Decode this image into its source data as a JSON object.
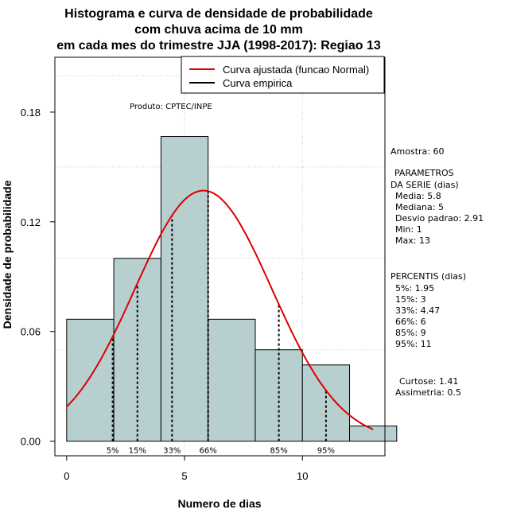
{
  "chart_data": {
    "type": "bar",
    "title_lines": [
      "Histograma e curva de densidade de probabilidade",
      "com chuva acima de 10 mm",
      "em cada mes do trimestre JJA (1998-2017): Regiao 13"
    ],
    "xlabel": "Numero de dias",
    "ylabel": "Densidade de probabilidade",
    "xlim": [
      -0.5,
      13.5
    ],
    "ylim": [
      -0.008,
      0.21
    ],
    "x_ticks": [
      0,
      5,
      10
    ],
    "y_ticks": [
      0.0,
      0.06,
      0.12,
      0.18
    ],
    "y_tick_labels": [
      "0.00",
      "0.06",
      "0.12",
      "0.18"
    ],
    "bins": [
      {
        "x0": 0,
        "x1": 2,
        "density": 0.0667
      },
      {
        "x0": 2,
        "x1": 4,
        "density": 0.1
      },
      {
        "x0": 4,
        "x1": 6,
        "density": 0.1667
      },
      {
        "x0": 6,
        "x1": 8,
        "density": 0.0667
      },
      {
        "x0": 8,
        "x1": 10,
        "density": 0.05
      },
      {
        "x0": 10,
        "x1": 12,
        "density": 0.0417
      },
      {
        "x0": 12,
        "x1": 14,
        "density": 0.0083
      }
    ],
    "normal_curve": {
      "mean": 5.8,
      "sd": 2.91,
      "x_from": 0,
      "x_to": 13,
      "color": "#dd0000"
    },
    "grid_y": [
      0.05,
      0.1,
      0.15,
      0.2
    ],
    "grid_x": [
      5,
      10
    ],
    "percentile_markers": [
      {
        "label": "5%",
        "x": 1.95
      },
      {
        "label": "15%",
        "x": 3
      },
      {
        "label": "33%",
        "x": 4.47
      },
      {
        "label": "66%",
        "x": 6
      },
      {
        "label": "85%",
        "x": 9
      },
      {
        "label": "95%",
        "x": 11
      }
    ],
    "legend": [
      {
        "label": "Curva ajustada (funcao Normal)",
        "color": "#dd0000"
      },
      {
        "label": "Curva empirica",
        "color": "#000000"
      }
    ],
    "annotation": "Produto: CPTEC/INPE",
    "bar_color": "#b8cfcf"
  },
  "side_panel": {
    "sample": "Amostra: 60",
    "params_title_1": "PARAMETROS",
    "params_title_2": "DA SERIE (dias)",
    "params": [
      "Media: 5.8",
      "Mediana: 5",
      "Desvio padrao: 2.91",
      "Min: 1",
      "Max: 13"
    ],
    "percentis_title": "PERCENTIS (dias)",
    "percentis": [
      "5%: 1.95",
      "15%: 3",
      "33%: 4.47",
      "66%: 6",
      "85%: 9",
      "95%: 11"
    ],
    "curtose": "Curtose: 1.41",
    "assimetria": "Assimetria: 0.5"
  }
}
